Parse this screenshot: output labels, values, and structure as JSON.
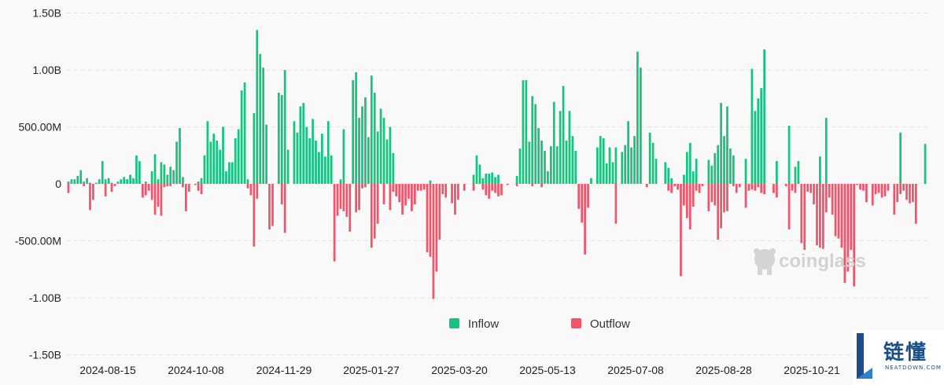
{
  "colors": {
    "inflow": "#17c47f",
    "outflow": "#f0556b",
    "grid": "#e2e2e2",
    "axis_text": "#222222"
  },
  "chart_data": {
    "type": "bar",
    "title": "",
    "xlabel": "",
    "ylabel": "",
    "ylim": [
      -1500000000,
      1500000000
    ],
    "y_ticks": [
      "1.50B",
      "1.00B",
      "500.00M",
      "0",
      "-500.00M",
      "-1.00B",
      "-1.50B"
    ],
    "x_ticks": [
      "2024-08-15",
      "2024-10-08",
      "2024-11-29",
      "2025-01-27",
      "2025-03-20",
      "2025-05-13",
      "2025-07-08",
      "2025-08-28",
      "2025-10-21"
    ],
    "grid": "horizontal dashed",
    "legend_position": "bottom-center",
    "series": [
      {
        "name": "Inflow",
        "color": "#17c47f",
        "values": [
          20,
          40,
          40,
          70,
          120,
          20,
          50,
          10,
          0,
          10,
          40,
          200,
          40,
          50,
          10,
          0,
          20,
          40,
          60,
          40,
          80,
          50,
          250,
          200,
          0,
          20,
          0,
          110,
          260,
          40,
          190,
          170,
          80,
          150,
          120,
          370,
          490,
          60,
          0,
          0,
          0,
          0,
          20,
          50,
          250,
          550,
          370,
          440,
          380,
          300,
          500,
          110,
          190,
          190,
          400,
          480,
          820,
          890,
          40,
          0,
          620,
          1350,
          1140,
          1020,
          520,
          0,
          0,
          0,
          800,
          780,
          1000,
          300,
          0,
          550,
          450,
          680,
          710,
          500,
          400,
          570,
          380,
          280,
          440,
          240,
          550,
          250,
          0,
          0,
          40,
          480,
          0,
          0,
          910,
          980,
          580,
          680,
          760,
          410,
          950,
          800,
          460,
          660,
          580,
          390,
          500,
          270,
          0,
          0,
          0,
          0,
          0,
          0,
          0,
          0,
          0,
          0,
          0,
          30,
          0,
          0,
          0,
          0,
          0,
          0,
          0,
          0,
          0,
          0,
          0,
          0,
          0,
          80,
          250,
          170,
          50,
          90,
          90,
          100,
          60,
          80,
          0,
          0,
          0,
          0,
          0,
          70,
          310,
          910,
          910,
          370,
          770,
          700,
          490,
          380,
          290,
          110,
          330,
          720,
          330,
          640,
          860,
          380,
          640,
          420,
          290,
          0,
          0,
          0,
          0,
          50,
          0,
          320,
          420,
          400,
          180,
          320,
          190,
          320,
          0,
          280,
          340,
          550,
          320,
          420,
          1160,
          1020,
          0,
          0,
          450,
          360,
          220,
          0,
          0,
          190,
          140,
          50,
          0,
          0,
          0,
          80,
          280,
          360,
          110,
          220,
          0,
          0,
          0,
          210,
          160,
          270,
          340,
          710,
          420,
          680,
          310,
          250,
          0,
          0,
          0,
          220,
          0,
          1010,
          640,
          750,
          840,
          1180,
          0,
          0,
          0,
          200,
          0,
          0,
          0,
          510,
          0,
          150,
          200,
          0,
          0,
          0,
          0,
          0,
          0,
          240,
          0,
          580,
          0,
          0,
          0,
          0,
          0,
          0,
          0,
          0,
          0,
          0,
          0,
          0,
          0,
          0,
          0,
          0,
          0,
          0,
          0,
          0,
          0,
          0,
          0,
          450,
          0,
          0,
          0,
          0,
          0,
          0,
          0,
          350,
          0
        ]
      },
      {
        "name": "Outflow",
        "color": "#f0556b",
        "values": [
          -80,
          0,
          0,
          0,
          0,
          -20,
          0,
          -230,
          -140,
          0,
          0,
          0,
          -110,
          0,
          -70,
          -20,
          0,
          0,
          0,
          0,
          0,
          0,
          0,
          0,
          -120,
          -100,
          -60,
          -140,
          -270,
          -200,
          -280,
          -30,
          -20,
          -20,
          0,
          0,
          0,
          -30,
          -240,
          -70,
          0,
          -10,
          -60,
          -90,
          0,
          0,
          0,
          0,
          0,
          0,
          0,
          0,
          0,
          0,
          0,
          0,
          0,
          0,
          -40,
          -100,
          -550,
          -130,
          0,
          0,
          0,
          -400,
          -370,
          0,
          0,
          -180,
          -430,
          0,
          0,
          0,
          0,
          0,
          0,
          0,
          0,
          0,
          0,
          0,
          0,
          0,
          0,
          0,
          -680,
          -280,
          -220,
          -240,
          -290,
          -420,
          0,
          -250,
          -230,
          -40,
          -30,
          0,
          -560,
          -480,
          -350,
          0,
          -180,
          0,
          -230,
          -70,
          -110,
          -160,
          -270,
          -190,
          -130,
          -240,
          -180,
          -60,
          -60,
          -50,
          -600,
          -640,
          -1010,
          -770,
          -490,
          -90,
          -120,
          0,
          -170,
          -270,
          -140,
          0,
          -60,
          0,
          0,
          -60,
          0,
          0,
          -50,
          -100,
          -130,
          -60,
          -80,
          -110,
          -100,
          0,
          -10,
          0,
          0,
          -20,
          0,
          0,
          0,
          0,
          -20,
          0,
          0,
          -30,
          0,
          0,
          0,
          0,
          0,
          0,
          0,
          0,
          0,
          0,
          0,
          -220,
          -340,
          -620,
          -210,
          0,
          0,
          0,
          0,
          0,
          0,
          0,
          0,
          -350,
          0,
          0,
          0,
          0,
          0,
          0,
          0,
          0,
          0,
          -30,
          0,
          0,
          0,
          0,
          0,
          0,
          -60,
          -80,
          -20,
          -50,
          -810,
          -190,
          -300,
          -400,
          -200,
          -60,
          -80,
          -20,
          0,
          -240,
          -160,
          -190,
          -490,
          -390,
          -250,
          -240,
          0,
          -20,
          -80,
          -30,
          0,
          -210,
          -60,
          -50,
          -60,
          -30,
          -80,
          -90,
          0,
          0,
          -80,
          -120,
          0,
          0,
          -20,
          -400,
          -60,
          -80,
          0,
          -520,
          -580,
          -70,
          -80,
          -180,
          -540,
          -560,
          -570,
          -250,
          -120,
          -270,
          -460,
          -480,
          -560,
          -870,
          -770,
          -580,
          -900,
          -10,
          -50,
          -60,
          -160,
          0,
          -190,
          -90,
          -80,
          -120,
          -110,
          -60,
          0,
          -270,
          -160,
          -90,
          -60,
          -140,
          -170,
          -160,
          -350
        ]
      }
    ]
  },
  "legend": [
    {
      "label": "Inflow",
      "color": "#17c47f"
    },
    {
      "label": "Outflow",
      "color": "#f0556b"
    }
  ],
  "watermark": {
    "text": "coinglass"
  },
  "brand": {
    "cn": "链懂",
    "en": "NEATDOWN.COM"
  }
}
